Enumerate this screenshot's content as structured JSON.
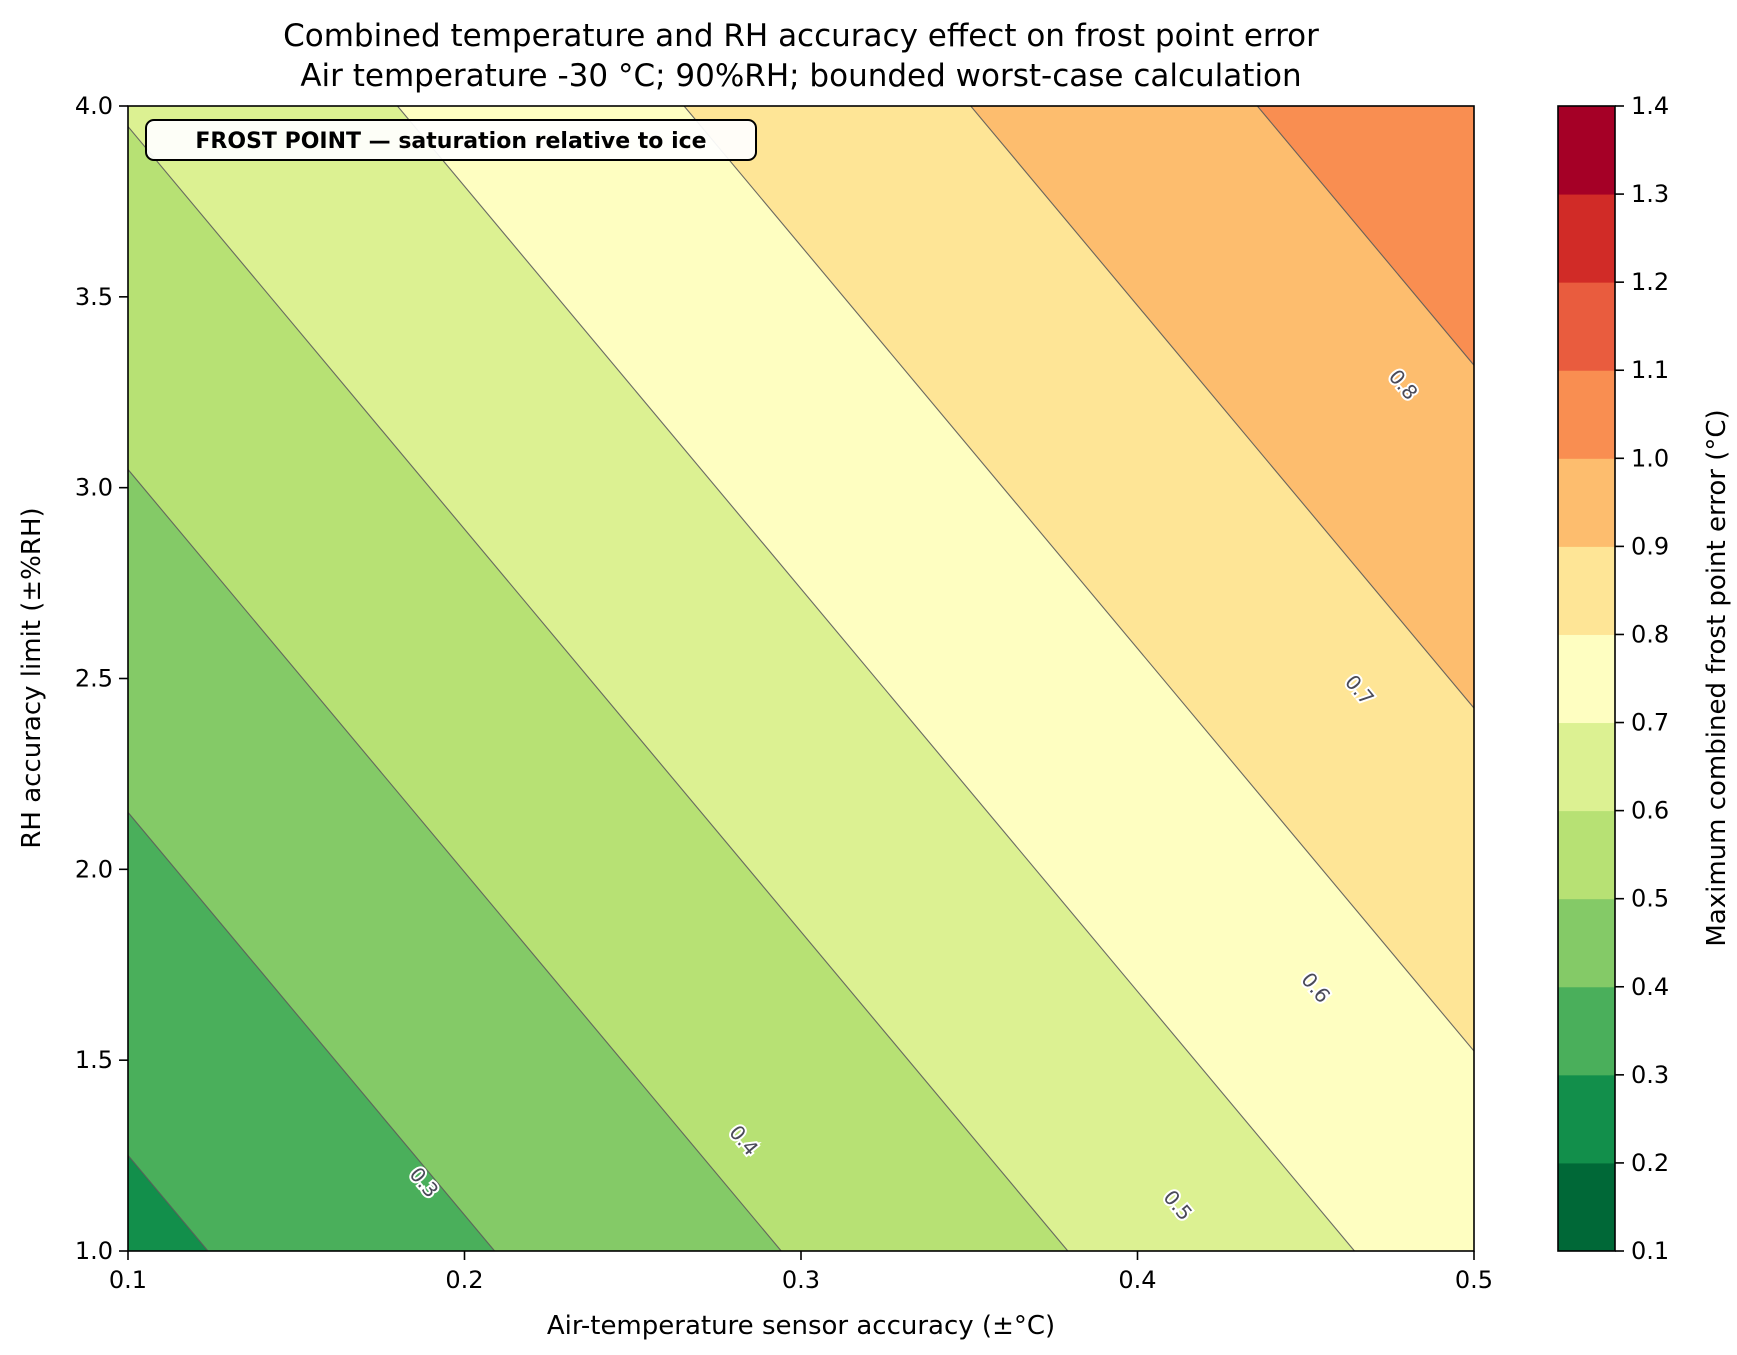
{
  "chart_data": {
    "type": "contour",
    "title_lines": [
      "Combined temperature and RH accuracy effect on frost point error",
      "Air temperature -30 °C; 90%RH; bounded worst-case calculation"
    ],
    "xlabel": "Air-temperature sensor accuracy (±°C)",
    "ylabel": "RH accuracy limit (±%RH)",
    "colorbar_label": "Maximum combined frost point error (°C)",
    "annotation": "FROST POINT — saturation relative to ice",
    "xlim": [
      0.1,
      0.5
    ],
    "ylim": [
      1.0,
      4.0
    ],
    "x_ticks": [
      0.1,
      0.2,
      0.3,
      0.4,
      0.5
    ],
    "x_tick_labels": [
      "0.1",
      "0.2",
      "0.3",
      "0.4",
      "0.5"
    ],
    "y_ticks": [
      1.0,
      1.5,
      2.0,
      2.5,
      3.0,
      3.5,
      4.0
    ],
    "y_tick_labels": [
      "1.0",
      "1.5",
      "2.0",
      "2.5",
      "3.0",
      "3.5",
      "4.0"
    ],
    "model": {
      "intercept": 0.0434,
      "coef_x": 1.174,
      "coef_y": 0.1113
    },
    "levels": [
      0.1,
      0.2,
      0.3,
      0.4,
      0.5,
      0.6,
      0.7,
      0.8,
      0.9,
      1.0,
      1.1,
      1.2,
      1.3,
      1.4
    ],
    "level_tick_labels": [
      "0.1",
      "0.2",
      "0.3",
      "0.4",
      "0.5",
      "0.6",
      "0.7",
      "0.8",
      "0.9",
      "1.0",
      "1.1",
      "1.2",
      "1.3",
      "1.4"
    ],
    "band_colors": [
      "#006837",
      "#128f4b",
      "#4aaf5b",
      "#84ca67",
      "#b7e174",
      "#dcf192",
      "#fefec1",
      "#fee596",
      "#fdbd6e",
      "#f98e51",
      "#e95c3e",
      "#d12b27",
      "#a50026"
    ],
    "contour_lines": [
      {
        "level": 0.3,
        "label": "0.3",
        "label_at": {
          "x": 0.188,
          "y": 1.18
        }
      },
      {
        "level": 0.4,
        "label": "0.4",
        "label_at": {
          "x": 0.283,
          "y": 1.29
        }
      },
      {
        "level": 0.5,
        "label": "0.5",
        "label_at": {
          "x": 0.412,
          "y": 1.12
        }
      },
      {
        "level": 0.6,
        "label": "0.6",
        "label_at": {
          "x": 0.453,
          "y": 1.69
        }
      },
      {
        "level": 0.7,
        "label": "0.7",
        "label_at": {
          "x": 0.466,
          "y": 2.47
        }
      },
      {
        "level": 0.8,
        "label": "0.8",
        "label_at": {
          "x": 0.479,
          "y": 3.27
        }
      }
    ]
  }
}
